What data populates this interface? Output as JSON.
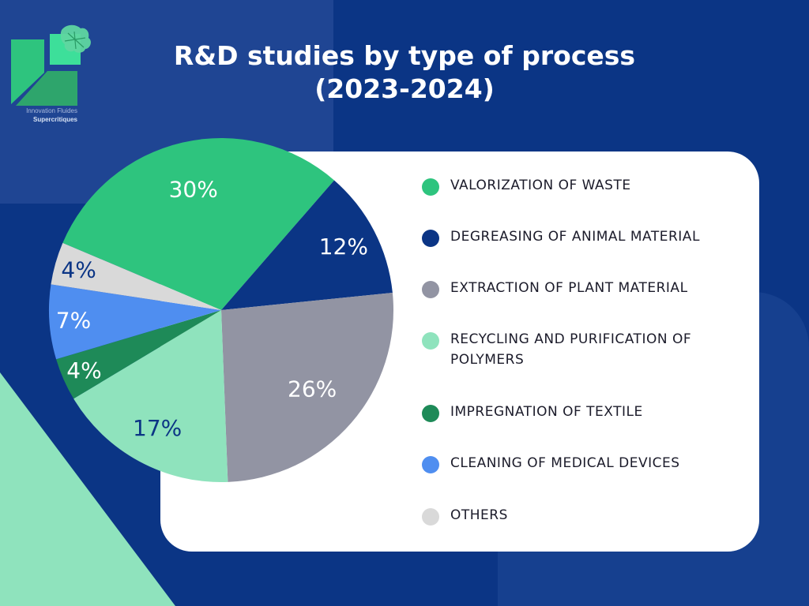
{
  "title_line1": "R&D studies by type of process",
  "title_line2": "(2023-2024)",
  "logo": {
    "line1": "Innovation Fluides",
    "line2": "Supercritiques"
  },
  "colors": {
    "background": "#0b3585",
    "card": "#ffffff"
  },
  "chart_data": {
    "type": "pie",
    "title": "R&D studies by type of process (2023-2024)",
    "slices": [
      {
        "label": "VALORIZATION OF WASTE",
        "value": 30,
        "display": "30%",
        "color": "#2ec47e",
        "text_color": "#ffffff"
      },
      {
        "label": "DEGREASING OF ANIMAL MATERIAL",
        "value": 12,
        "display": "12%",
        "color": "#0b3585",
        "text_color": "#ffffff"
      },
      {
        "label": "EXTRACTION OF PLANT MATERIAL",
        "value": 26,
        "display": "26%",
        "color": "#9294a3",
        "text_color": "#ffffff"
      },
      {
        "label": "RECYCLING AND PURIFICATION OF POLYMERS",
        "value": 17,
        "display": "17%",
        "color": "#8fe3bd",
        "text_color": "#0b3585"
      },
      {
        "label": "IMPREGNATION OF TEXTILE",
        "value": 4,
        "display": "4%",
        "color": "#1e8a58",
        "text_color": "#ffffff"
      },
      {
        "label": "CLEANING OF MEDICAL DEVICES",
        "value": 7,
        "display": "7%",
        "color": "#4f8ef0",
        "text_color": "#ffffff"
      },
      {
        "label": "OTHERS",
        "value": 4,
        "display": "4%",
        "color": "#d9d9d9",
        "text_color": "#0b3585"
      }
    ],
    "legend_position": "right"
  }
}
